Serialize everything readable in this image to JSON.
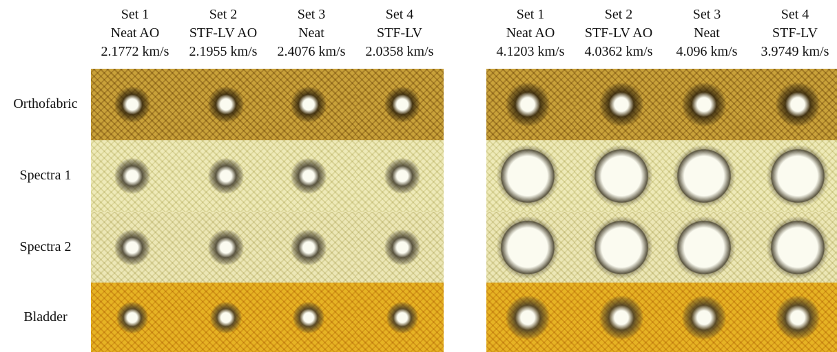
{
  "groups": [
    {
      "columns": [
        {
          "set": "Set 1",
          "material": "Neat AO",
          "velocity": "2.1772 km/s"
        },
        {
          "set": "Set 2",
          "material": "STF-LV AO",
          "velocity": "2.1955 km/s"
        },
        {
          "set": "Set 3",
          "material": "Neat",
          "velocity": "2.4076 km/s"
        },
        {
          "set": "Set 4",
          "material": "STF-LV",
          "velocity": "2.0358 km/s"
        }
      ]
    },
    {
      "columns": [
        {
          "set": "Set 1",
          "material": "Neat AO",
          "velocity": "4.1203 km/s"
        },
        {
          "set": "Set 2",
          "material": "STF-LV AO",
          "velocity": "4.0362 km/s"
        },
        {
          "set": "Set 3",
          "material": "Neat",
          "velocity": "4.096 km/s"
        },
        {
          "set": "Set 4",
          "material": "STF-LV",
          "velocity": "3.9749 km/s"
        }
      ]
    }
  ],
  "rows": [
    "Orthofabric",
    "Spectra 1",
    "Spectra 2",
    "Bladder"
  ]
}
